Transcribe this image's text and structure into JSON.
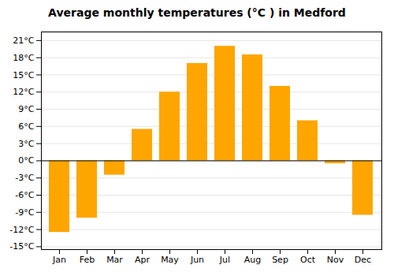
{
  "chart_data": {
    "type": "bar",
    "title": "Average monthly temperatures (°C ) in Medford",
    "categories": [
      "Jan",
      "Feb",
      "Mar",
      "Apr",
      "May",
      "Jun",
      "Jul",
      "Aug",
      "Sep",
      "Oct",
      "Nov",
      "Dec"
    ],
    "values": [
      -12.5,
      -10.0,
      -2.5,
      5.5,
      12.0,
      17.0,
      20.0,
      18.5,
      13.0,
      7.0,
      -0.5,
      -9.5
    ],
    "color": "#FFA500",
    "ylim": [
      -15.5,
      22.5
    ],
    "yticks": [
      {
        "value": -15,
        "label": "-15°C"
      },
      {
        "value": -12,
        "label": "-12°C"
      },
      {
        "value": -9,
        "label": "-9°C"
      },
      {
        "value": -6,
        "label": "-6°C"
      },
      {
        "value": -3,
        "label": "-3°C"
      },
      {
        "value": 0,
        "label": "0°C"
      },
      {
        "value": 3,
        "label": "3°C"
      },
      {
        "value": 6,
        "label": "6°C"
      },
      {
        "value": 9,
        "label": "9°C"
      },
      {
        "value": 12,
        "label": "12°C"
      },
      {
        "value": 15,
        "label": "15°C"
      },
      {
        "value": 18,
        "label": "18°C"
      },
      {
        "value": 21,
        "label": "21°C"
      }
    ],
    "grid": true
  }
}
